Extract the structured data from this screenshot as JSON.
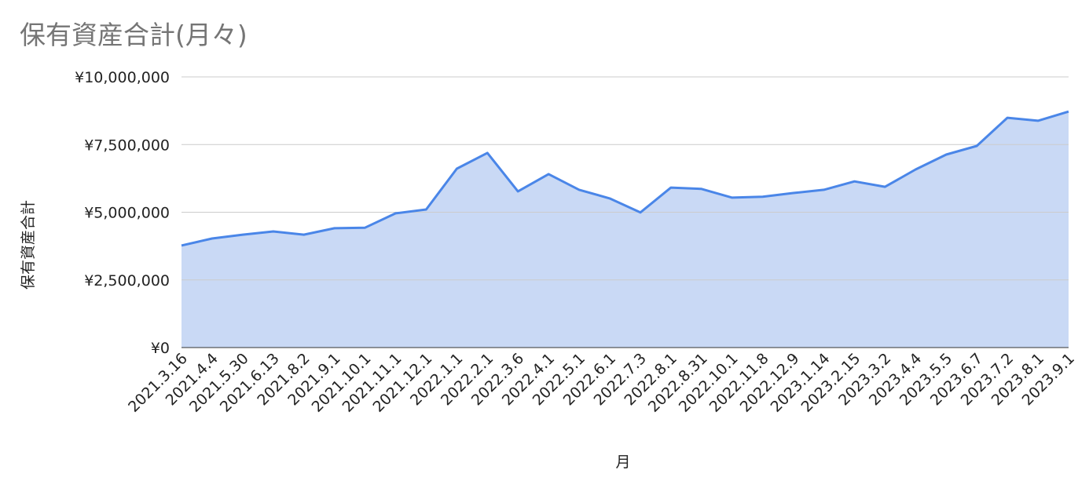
{
  "chart_data": {
    "type": "area",
    "title": "保有資産合計(月々)",
    "x_label": "月",
    "y_label": "保有資産合計",
    "categories": [
      "2021.3.16",
      "2021.4.4",
      "2021.5.30",
      "2021.6.13",
      "2021.8.2",
      "2021.9.1",
      "2021.10.1",
      "2021.11.1",
      "2021.12.1",
      "2022.1.1",
      "2022.2.1",
      "2022.3.6",
      "2022.4.1",
      "2022.5.1",
      "2022.6.1",
      "2022.7.3",
      "2022.8.1",
      "2022.8.31",
      "2022.10.1",
      "2022.11.8",
      "2022.12.9",
      "2023.1.14",
      "2023.2.15",
      "2023.3.2",
      "2023.4.4",
      "2023.5.5",
      "2023.6.7",
      "2023.7.2",
      "2023.8.1",
      "2023.9.1"
    ],
    "values": [
      3770000,
      4030000,
      4170000,
      4290000,
      4170000,
      4410000,
      4430000,
      4960000,
      5100000,
      6610000,
      7190000,
      5770000,
      6410000,
      5830000,
      5510000,
      4990000,
      5910000,
      5860000,
      5540000,
      5570000,
      5710000,
      5830000,
      6140000,
      5940000,
      6580000,
      7130000,
      7450000,
      8490000,
      8380000,
      8720000
    ],
    "color": "#4a86e8",
    "fill_color": "#c9d9f5",
    "ylim": [
      0,
      10000000
    ],
    "yticks": [
      {
        "value": 0,
        "label": "¥0"
      },
      {
        "value": 2500000,
        "label": "¥2,500,000"
      },
      {
        "value": 5000000,
        "label": "¥5,000,000"
      },
      {
        "value": 7500000,
        "label": "¥7,500,000"
      },
      {
        "value": 10000000,
        "label": "¥10,000,000"
      }
    ],
    "grid": true
  }
}
